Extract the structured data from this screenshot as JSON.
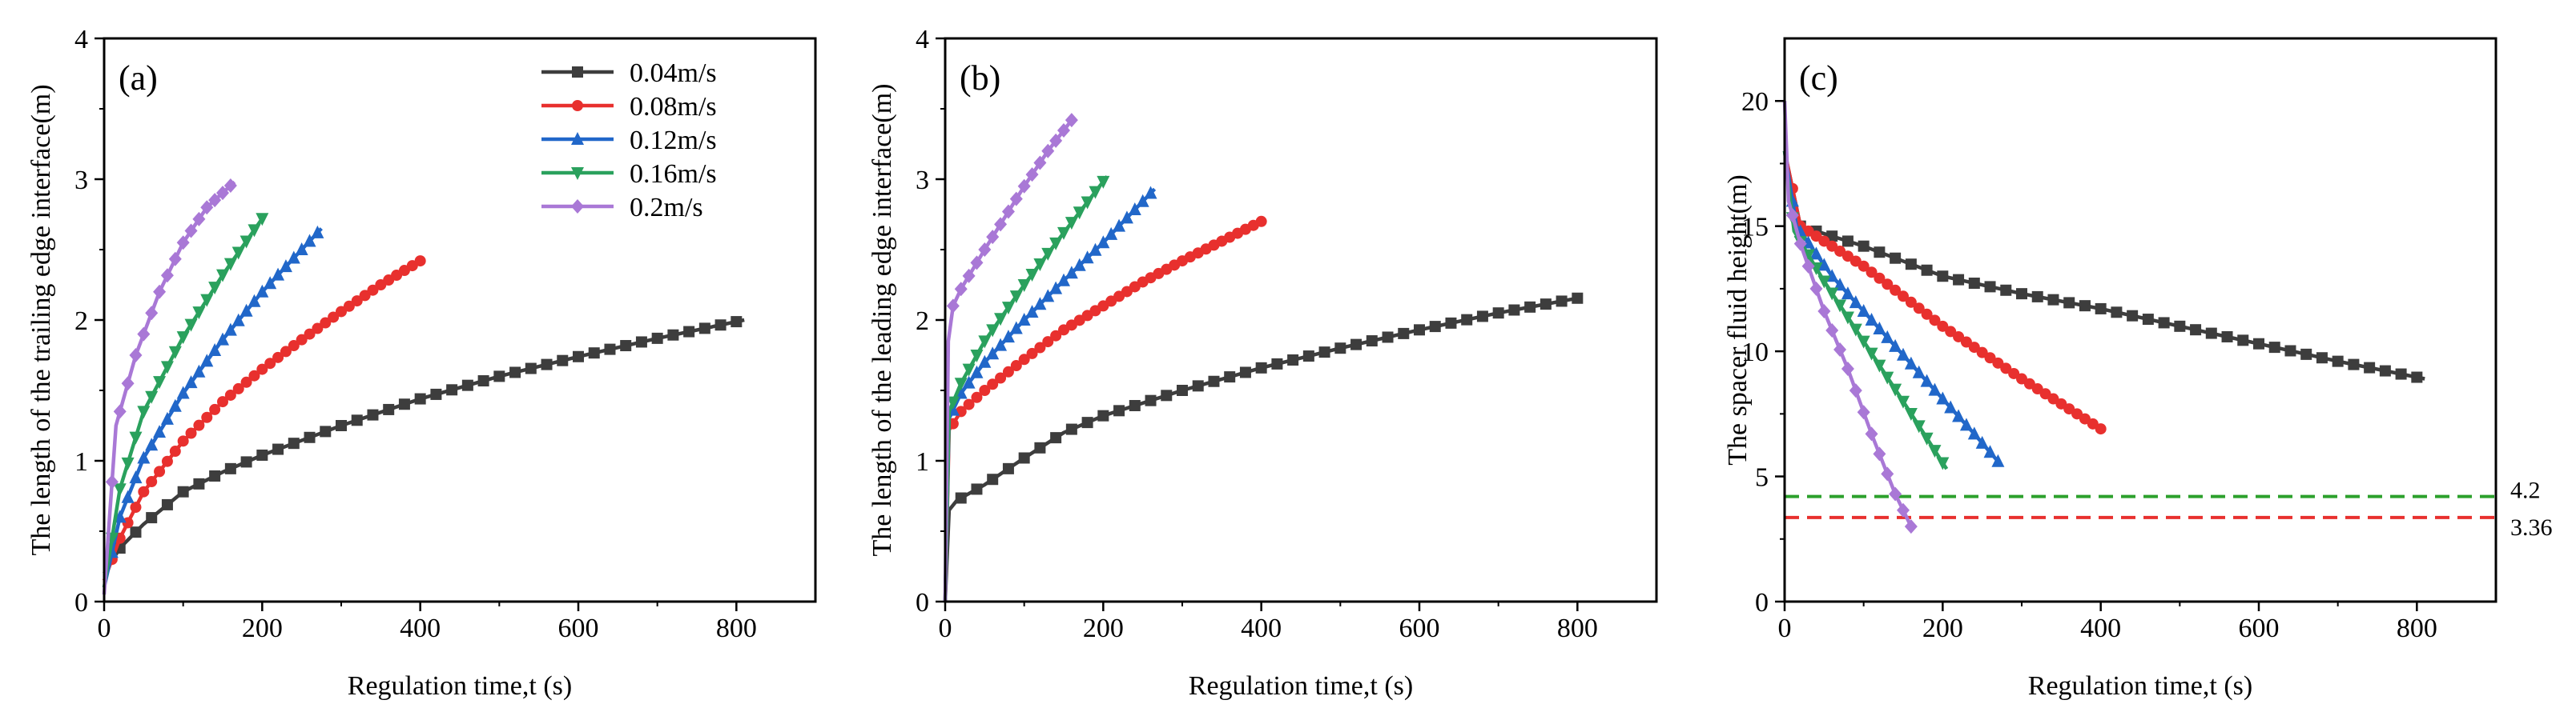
{
  "colors": {
    "0.04m/s": "#3d3d3d",
    "0.08m/s": "#e8302e",
    "0.12m/s": "#2167c9",
    "0.16m/s": "#2aa15d",
    "0.2m/s": "#a978d6",
    "ref_green": "#2ca02c",
    "ref_red": "#e8302e"
  },
  "chart_data": [
    {
      "type": "line",
      "panel_label": "(a)",
      "title": "",
      "xlabel": "Regulation time,t (s)",
      "ylabel": "The length of the trailing edge interface(m)",
      "xlim": [
        0,
        900
      ],
      "ylim": [
        0,
        4
      ],
      "xticks": [
        0,
        200,
        400,
        600,
        800
      ],
      "yticks": [
        0,
        1,
        2,
        3,
        4
      ],
      "legend": "top-right",
      "series": [
        {
          "name": "0.04m/s",
          "marker": "square",
          "tmax": 810,
          "x": [
            0,
            20,
            50,
            100,
            150,
            200,
            300,
            400,
            500,
            600,
            700,
            810
          ],
          "y": [
            0.2,
            0.38,
            0.55,
            0.78,
            0.92,
            1.04,
            1.25,
            1.44,
            1.6,
            1.74,
            1.87,
            2.0
          ]
        },
        {
          "name": "0.08m/s",
          "marker": "circle",
          "tmax": 400,
          "x": [
            0,
            20,
            50,
            100,
            150,
            200,
            250,
            300,
            350,
            400
          ],
          "y": [
            0.15,
            0.45,
            0.78,
            1.14,
            1.42,
            1.65,
            1.86,
            2.06,
            2.25,
            2.42
          ]
        },
        {
          "name": "0.12m/s",
          "marker": "triangle-up",
          "tmax": 275,
          "x": [
            0,
            20,
            50,
            100,
            150,
            200,
            250,
            275
          ],
          "y": [
            0.1,
            0.6,
            1.02,
            1.48,
            1.86,
            2.2,
            2.5,
            2.65
          ]
        },
        {
          "name": "0.16m/s",
          "marker": "triangle-down",
          "tmax": 200,
          "x": [
            0,
            20,
            50,
            100,
            150,
            200
          ],
          "y": [
            0.1,
            0.8,
            1.35,
            1.88,
            2.32,
            2.72
          ]
        },
        {
          "name": "0.2m/s",
          "marker": "diamond",
          "tmax": 165,
          "x": [
            0,
            15,
            40,
            70,
            100,
            130,
            165
          ],
          "y": [
            0.05,
            1.25,
            1.75,
            2.2,
            2.55,
            2.8,
            2.98
          ]
        }
      ]
    },
    {
      "type": "line",
      "panel_label": "(b)",
      "title": "",
      "xlabel": "Regulation time,t (s)",
      "ylabel": "The length of the leading edge interface(m)",
      "xlim": [
        0,
        900
      ],
      "ylim": [
        0,
        4
      ],
      "xticks": [
        0,
        200,
        400,
        600,
        800
      ],
      "yticks": [
        0,
        1,
        2,
        3,
        4
      ],
      "series": [
        {
          "name": "0.04m/s",
          "marker": "square",
          "tmax": 805,
          "x": [
            0,
            5,
            15,
            50,
            100,
            150,
            200,
            300,
            400,
            500,
            600,
            700,
            805
          ],
          "y": [
            0.0,
            0.65,
            0.72,
            0.83,
            1.02,
            1.2,
            1.32,
            1.5,
            1.66,
            1.8,
            1.93,
            2.05,
            2.16
          ]
        },
        {
          "name": "0.08m/s",
          "marker": "circle",
          "tmax": 400,
          "x": [
            0,
            5,
            20,
            50,
            100,
            150,
            200,
            250,
            300,
            350,
            400
          ],
          "y": [
            0.0,
            1.22,
            1.35,
            1.5,
            1.72,
            1.93,
            2.1,
            2.27,
            2.42,
            2.56,
            2.7
          ]
        },
        {
          "name": "0.12m/s",
          "marker": "triangle-up",
          "tmax": 265,
          "x": [
            0,
            5,
            20,
            50,
            100,
            150,
            200,
            265
          ],
          "y": [
            0.0,
            1.3,
            1.48,
            1.7,
            2.0,
            2.28,
            2.55,
            2.93
          ]
        },
        {
          "name": "0.16m/s",
          "marker": "triangle-down",
          "tmax": 205,
          "x": [
            0,
            5,
            20,
            50,
            100,
            150,
            205
          ],
          "y": [
            0.0,
            1.35,
            1.55,
            1.85,
            2.25,
            2.62,
            3.02
          ]
        },
        {
          "name": "0.2m/s",
          "marker": "diamond",
          "tmax": 160,
          "x": [
            0,
            4,
            10,
            20,
            50,
            100,
            130,
            160
          ],
          "y": [
            0.0,
            1.85,
            2.1,
            2.22,
            2.5,
            2.95,
            3.2,
            3.42
          ]
        }
      ]
    },
    {
      "type": "line",
      "panel_label": "(c)",
      "title": "",
      "xlabel": "Regulation time,t (s)",
      "ylabel": "The spacer fluid height(m)",
      "xlim": [
        0,
        900
      ],
      "ylim": [
        0,
        22.5
      ],
      "xticks": [
        0,
        200,
        400,
        600,
        800
      ],
      "yticks": [
        0,
        5,
        10,
        15,
        20
      ],
      "reference_lines": [
        {
          "y": 4.2,
          "label": "4.2",
          "color": "ref_green"
        },
        {
          "y": 3.36,
          "label": "3.36",
          "color": "ref_red"
        }
      ],
      "series": [
        {
          "name": "0.04m/s",
          "marker": "square",
          "tmax": 810,
          "x": [
            0,
            20,
            100,
            200,
            300,
            400,
            500,
            600,
            700,
            810
          ],
          "y": [
            18.0,
            15.0,
            14.2,
            13.0,
            12.3,
            11.7,
            11.0,
            10.3,
            9.6,
            8.9
          ]
        },
        {
          "name": "0.08m/s",
          "marker": "circle",
          "tmax": 400,
          "x": [
            0,
            20,
            100,
            200,
            300,
            400
          ],
          "y": [
            18.0,
            15.0,
            13.4,
            11.0,
            8.9,
            6.9
          ]
        },
        {
          "name": "0.12m/s",
          "marker": "triangle-up",
          "tmax": 270,
          "x": [
            0,
            15,
            60,
            120,
            180,
            240,
            270
          ],
          "y": [
            18.0,
            15.0,
            13.0,
            10.9,
            8.8,
            6.7,
            5.6
          ]
        },
        {
          "name": "0.16m/s",
          "marker": "triangle-down",
          "tmax": 205,
          "x": [
            0,
            12,
            50,
            100,
            150,
            205
          ],
          "y": [
            18.0,
            14.8,
            12.8,
            10.4,
            8.0,
            5.3
          ]
        },
        {
          "name": "0.2m/s",
          "marker": "diamond",
          "tmax": 160,
          "x": [
            0,
            5,
            20,
            50,
            80,
            110,
            140,
            160
          ],
          "y": [
            20.0,
            16.0,
            14.3,
            11.6,
            9.3,
            6.7,
            4.3,
            3.0
          ]
        }
      ]
    }
  ]
}
